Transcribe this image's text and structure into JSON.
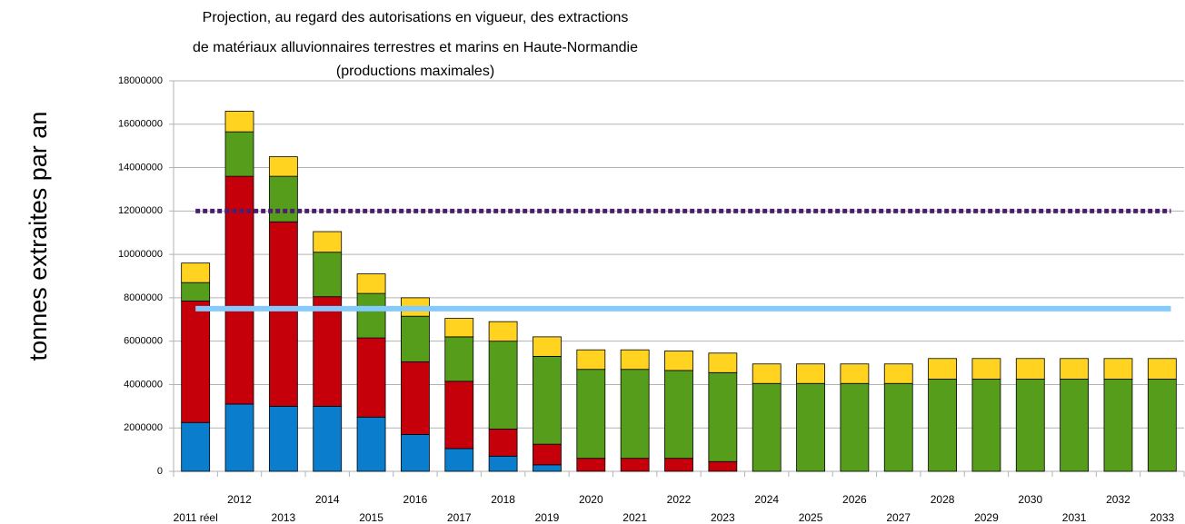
{
  "chart_data": {
    "type": "stacked_bar",
    "title": [
      "Projection, au regard des autorisations en vigueur, des extractions",
      "de matériaux alluvionnaires terrestres et marins en Haute-Normandie",
      "(productions maximales)"
    ],
    "y_label": "tonnes extraites par an",
    "categories": [
      "2011 réel",
      "2012",
      "2013",
      "2014",
      "2015",
      "2016",
      "2017",
      "2018",
      "2019",
      "2020",
      "2021",
      "2022",
      "2023",
      "2024",
      "2025",
      "2026",
      "2027",
      "2028",
      "2029",
      "2030",
      "2031",
      "2032",
      "2033"
    ],
    "series": [
      {
        "color": "#0a7dcc",
        "values": [
          2250000,
          3100000,
          3000000,
          3000000,
          2500000,
          1700000,
          1050000,
          700000,
          300000,
          0,
          0,
          0,
          0,
          0,
          0,
          0,
          0,
          0,
          0,
          0,
          0,
          0,
          0
        ]
      },
      {
        "color": "#c5000b",
        "values": [
          5600000,
          10500000,
          8500000,
          5050000,
          3650000,
          3350000,
          3100000,
          1250000,
          950000,
          600000,
          600000,
          600000,
          450000,
          0,
          0,
          0,
          0,
          0,
          0,
          0,
          0,
          0,
          0
        ]
      },
      {
        "color": "#579d1c",
        "values": [
          850000,
          2050000,
          2100000,
          2050000,
          2050000,
          2100000,
          2050000,
          4050000,
          4050000,
          4100000,
          4100000,
          4050000,
          4100000,
          4050000,
          4050000,
          4050000,
          4050000,
          4250000,
          4250000,
          4250000,
          4250000,
          4250000,
          4250000
        ]
      },
      {
        "color": "#ffd320",
        "values": [
          900000,
          950000,
          900000,
          950000,
          900000,
          850000,
          850000,
          900000,
          900000,
          900000,
          900000,
          900000,
          900000,
          900000,
          900000,
          900000,
          900000,
          950000,
          950000,
          950000,
          950000,
          950000,
          950000
        ]
      }
    ],
    "reference_lines": [
      {
        "value": 12000000,
        "color": "#4b1f6f",
        "style": "dotted"
      },
      {
        "value": 7500000,
        "color": "#83caff",
        "style": "solid"
      }
    ],
    "ylim": [
      0,
      18000000
    ],
    "yticks": [
      0,
      2000000,
      4000000,
      6000000,
      8000000,
      10000000,
      12000000,
      14000000,
      16000000,
      18000000
    ],
    "grid": true
  }
}
